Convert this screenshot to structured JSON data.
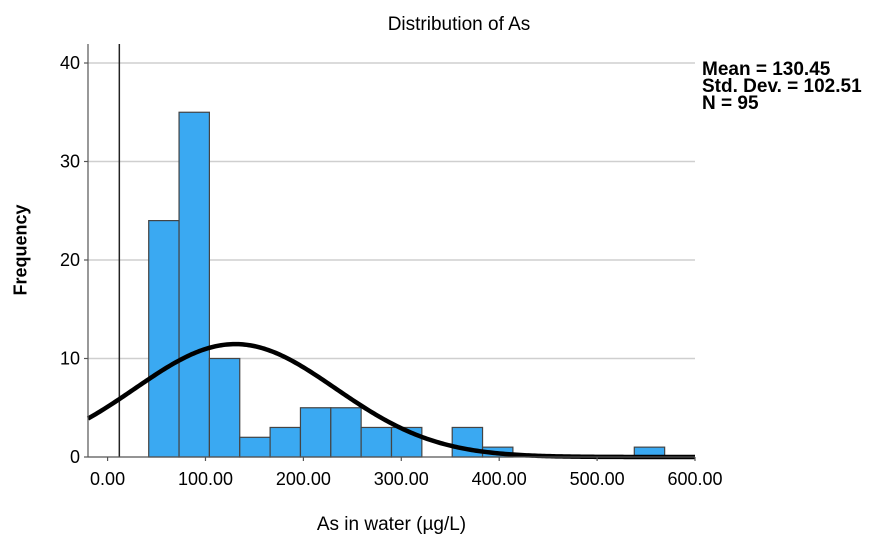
{
  "chart_data": {
    "type": "bar",
    "title": "Distribution of As",
    "xlabel": "As in water (µg/L)",
    "ylabel": "Frequency",
    "xlim": [
      -20,
      600
    ],
    "ylim": [
      0,
      40
    ],
    "x_ticks": [
      0,
      100,
      200,
      300,
      400,
      500,
      600
    ],
    "x_tick_labels": [
      "0.00",
      "100.00",
      "200.00",
      "300.00",
      "400.00",
      "500.00",
      "600.00"
    ],
    "y_ticks": [
      0,
      10,
      20,
      30,
      40
    ],
    "y_tick_labels": [
      "0",
      "10",
      "20",
      "30",
      "40"
    ],
    "bin_width": 31,
    "bins": [
      {
        "start": 42,
        "end": 73,
        "count": 24
      },
      {
        "start": 73,
        "end": 104,
        "count": 35
      },
      {
        "start": 104,
        "end": 135,
        "count": 10
      },
      {
        "start": 135,
        "end": 166,
        "count": 2
      },
      {
        "start": 166,
        "end": 197,
        "count": 3
      },
      {
        "start": 197,
        "end": 228,
        "count": 5
      },
      {
        "start": 228,
        "end": 259,
        "count": 5
      },
      {
        "start": 259,
        "end": 290,
        "count": 3
      },
      {
        "start": 290,
        "end": 321,
        "count": 3
      },
      {
        "start": 321,
        "end": 352,
        "count": 0
      },
      {
        "start": 352,
        "end": 383,
        "count": 3
      },
      {
        "start": 383,
        "end": 414,
        "count": 1
      },
      {
        "start": 414,
        "end": 445,
        "count": 0
      },
      {
        "start": 445,
        "end": 476,
        "count": 0
      },
      {
        "start": 476,
        "end": 507,
        "count": 0
      },
      {
        "start": 507,
        "end": 538,
        "count": 0
      },
      {
        "start": 538,
        "end": 569,
        "count": 1
      }
    ],
    "normal_curve": {
      "mean": 130.45,
      "std_dev": 102.51,
      "n": 95
    },
    "vertical_reference_line_x": 12,
    "grid": "horizontal",
    "bar_color": "#3aa9f2",
    "bar_edge_color": "#444444",
    "curve_color": "#000000"
  },
  "stats": {
    "mean": "Mean = 130.45",
    "std_dev": "Std. Dev. = 102.51",
    "n": "N = 95"
  }
}
